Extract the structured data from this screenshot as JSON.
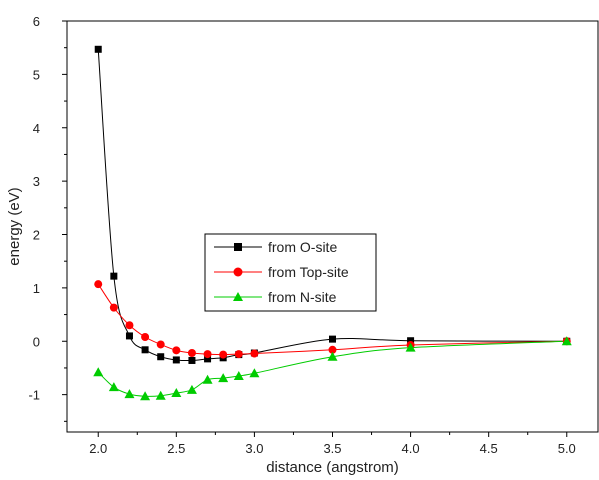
{
  "chart_data": {
    "type": "line",
    "title": "",
    "xlabel": "distance (angstrom)",
    "ylabel": "energy (eV)",
    "xlim": [
      1.8,
      5.2
    ],
    "ylim": [
      -1.7,
      6.0
    ],
    "xticks": [
      2.0,
      2.5,
      3.0,
      3.5,
      4.0,
      4.5,
      5.0
    ],
    "xtick_labels": [
      "2.0",
      "2.5",
      "3.0",
      "3.5",
      "4.0",
      "4.5",
      "5.0"
    ],
    "yticks": [
      -1,
      0,
      1,
      2,
      3,
      4,
      5,
      6
    ],
    "ytick_labels": [
      "-1",
      "0",
      "1",
      "2",
      "3",
      "4",
      "5",
      "6"
    ],
    "grid": false,
    "legend_position": "center",
    "series": [
      {
        "name": "from O-site",
        "color": "#000000",
        "marker": "square",
        "x": [
          2.0,
          2.1,
          2.2,
          2.3,
          2.4,
          2.5,
          2.6,
          2.7,
          2.8,
          2.9,
          3.0,
          3.5,
          4.0,
          5.0
        ],
        "y": [
          5.47,
          1.22,
          0.1,
          -0.16,
          -0.29,
          -0.35,
          -0.36,
          -0.33,
          -0.31,
          -0.25,
          -0.22,
          0.04,
          0.01,
          0.0
        ]
      },
      {
        "name": "from Top-site",
        "color": "#ff0000",
        "marker": "circle",
        "x": [
          2.0,
          2.1,
          2.2,
          2.3,
          2.4,
          2.5,
          2.6,
          2.7,
          2.8,
          2.9,
          3.0,
          3.5,
          4.0,
          5.0
        ],
        "y": [
          1.07,
          0.63,
          0.3,
          0.08,
          -0.06,
          -0.17,
          -0.22,
          -0.24,
          -0.25,
          -0.24,
          -0.23,
          -0.16,
          -0.07,
          0.0
        ]
      },
      {
        "name": "from N-site",
        "color": "#00cc00",
        "marker": "triangle",
        "x": [
          2.0,
          2.1,
          2.2,
          2.3,
          2.4,
          2.5,
          2.6,
          2.7,
          2.8,
          2.9,
          3.0,
          3.5,
          4.0,
          5.0
        ],
        "y": [
          -0.58,
          -0.86,
          -0.99,
          -1.03,
          -1.02,
          -0.97,
          -0.91,
          -0.72,
          -0.69,
          -0.65,
          -0.6,
          -0.29,
          -0.12,
          0.0
        ]
      }
    ]
  }
}
